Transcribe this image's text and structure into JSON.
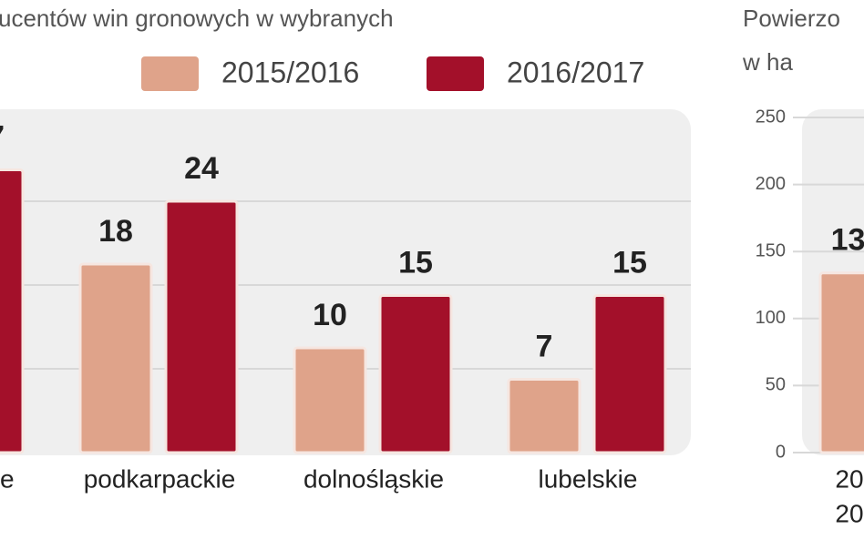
{
  "chart_data": [
    {
      "type": "bar",
      "title": "ucentów win gronowych w wybranych",
      "categories": [
        "e",
        "podkarpackie",
        "dolnośląskie",
        "lubelskie"
      ],
      "series": [
        {
          "name": "2015/2016",
          "color": "#dfa38a",
          "values": [
            null,
            18,
            10,
            7
          ]
        },
        {
          "name": "2016/2017",
          "color": "#a3102a",
          "values": [
            27,
            24,
            15,
            15
          ]
        }
      ],
      "ylim": [
        0,
        32
      ],
      "yticks": [
        8,
        16,
        24
      ],
      "grid": true,
      "tick_labels": false
    },
    {
      "type": "bar",
      "title": "Powierzo",
      "subtitle": "w ha",
      "categories": [
        [
          "20",
          "20"
        ]
      ],
      "values": [
        134
      ],
      "color": "#dfa38a",
      "ylim": [
        0,
        250
      ],
      "yticks": [
        0,
        50,
        100,
        150,
        200,
        250
      ],
      "grid": true,
      "tick_labels": true
    }
  ]
}
